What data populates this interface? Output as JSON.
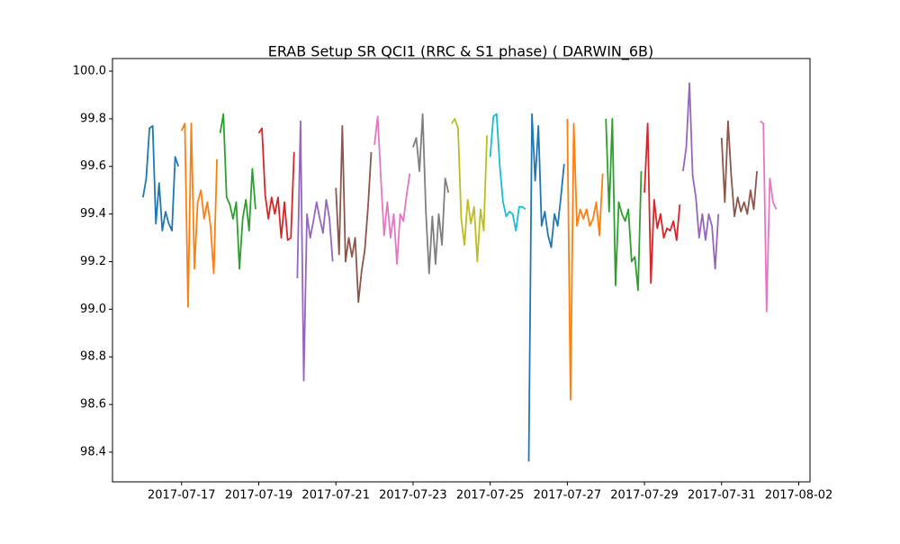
{
  "chart_data": {
    "type": "line",
    "title": "ERAB Setup SR QCI1 (RRC & S1 phase) ( DARWIN_6B)",
    "xlim": [
      "2017-07-15 05:00",
      "2017-08-02 07:00"
    ],
    "xticks": [
      "2017-07-17",
      "2017-07-19",
      "2017-07-21",
      "2017-07-23",
      "2017-07-25",
      "2017-07-27",
      "2017-07-29",
      "2017-07-31",
      "2017-08-02"
    ],
    "ylim": [
      98.275,
      100.053
    ],
    "yticks": [
      98.4,
      98.6,
      98.8,
      {
        "value": 99,
        "label": "99.0"
      },
      99.2,
      99.4,
      99.6,
      99.8,
      {
        "value": 100,
        "label": "100.0"
      }
    ],
    "series": [
      {
        "color": "#1f77b4",
        "x": [
          "2017-07-16 00:00",
          "2017-07-16 02:00",
          "2017-07-16 04:00",
          "2017-07-16 06:00",
          "2017-07-16 08:00",
          "2017-07-16 10:00",
          "2017-07-16 12:00",
          "2017-07-16 14:00",
          "2017-07-16 16:00",
          "2017-07-16 18:00",
          "2017-07-16 20:00",
          "2017-07-16 22:00"
        ],
        "values": [
          99.47,
          99.55,
          99.76,
          99.77,
          99.36,
          99.53,
          99.33,
          99.41,
          99.36,
          99.33,
          99.64,
          99.6
        ]
      },
      {
        "color": "#ff7f0e",
        "x": [
          "2017-07-17 00:00",
          "2017-07-17 02:00",
          "2017-07-17 04:00",
          "2017-07-17 06:00",
          "2017-07-17 08:00",
          "2017-07-17 10:00",
          "2017-07-17 12:00",
          "2017-07-17 14:00",
          "2017-07-17 16:00",
          "2017-07-17 18:00",
          "2017-07-17 20:00",
          "2017-07-17 22:00"
        ],
        "values": [
          99.75,
          99.78,
          99.01,
          99.78,
          99.17,
          99.45,
          99.5,
          99.38,
          99.45,
          99.35,
          99.15,
          99.63
        ]
      },
      {
        "color": "#2ca02c",
        "x": [
          "2017-07-18 00:00",
          "2017-07-18 02:00",
          "2017-07-18 04:00",
          "2017-07-18 06:00",
          "2017-07-18 08:00",
          "2017-07-18 10:00",
          "2017-07-18 12:00",
          "2017-07-18 14:00",
          "2017-07-18 16:00",
          "2017-07-18 18:00",
          "2017-07-18 20:00",
          "2017-07-18 22:00"
        ],
        "values": [
          99.74,
          99.82,
          99.47,
          99.44,
          99.38,
          99.45,
          99.17,
          99.38,
          99.46,
          99.33,
          99.59,
          99.42
        ]
      },
      {
        "color": "#d62728",
        "x": [
          "2017-07-19 00:00",
          "2017-07-19 02:00",
          "2017-07-19 04:00",
          "2017-07-19 06:00",
          "2017-07-19 08:00",
          "2017-07-19 10:00",
          "2017-07-19 12:00",
          "2017-07-19 14:00",
          "2017-07-19 16:00",
          "2017-07-19 18:00",
          "2017-07-19 20:00",
          "2017-07-19 22:00"
        ],
        "values": [
          99.74,
          99.76,
          99.48,
          99.38,
          99.47,
          99.4,
          99.47,
          99.3,
          99.45,
          99.29,
          99.3,
          99.66
        ]
      },
      {
        "color": "#9467bd",
        "x": [
          "2017-07-20 00:00",
          "2017-07-20 02:00",
          "2017-07-20 04:00",
          "2017-07-20 06:00",
          "2017-07-20 08:00",
          "2017-07-20 10:00",
          "2017-07-20 12:00",
          "2017-07-20 14:00",
          "2017-07-20 16:00",
          "2017-07-20 18:00",
          "2017-07-20 20:00",
          "2017-07-20 22:00"
        ],
        "values": [
          99.13,
          99.79,
          98.7,
          99.4,
          99.3,
          99.37,
          99.45,
          99.38,
          99.32,
          99.46,
          99.38,
          99.2
        ]
      },
      {
        "color": "#8c564b",
        "x": [
          "2017-07-21 00:00",
          "2017-07-21 02:00",
          "2017-07-21 04:00",
          "2017-07-21 06:00",
          "2017-07-21 08:00",
          "2017-07-21 10:00",
          "2017-07-21 12:00",
          "2017-07-21 14:00",
          "2017-07-21 16:00",
          "2017-07-21 18:00",
          "2017-07-21 20:00",
          "2017-07-21 22:00"
        ],
        "values": [
          99.51,
          99.23,
          99.77,
          99.2,
          99.3,
          99.22,
          99.3,
          99.03,
          99.16,
          99.25,
          99.43,
          99.66
        ]
      },
      {
        "color": "#e377c2",
        "x": [
          "2017-07-22 00:00",
          "2017-07-22 02:00",
          "2017-07-22 04:00",
          "2017-07-22 06:00",
          "2017-07-22 08:00",
          "2017-07-22 10:00",
          "2017-07-22 12:00",
          "2017-07-22 14:00",
          "2017-07-22 16:00",
          "2017-07-22 18:00",
          "2017-07-22 20:00",
          "2017-07-22 22:00"
        ],
        "values": [
          99.69,
          99.81,
          99.55,
          99.31,
          99.45,
          99.3,
          99.4,
          99.19,
          99.4,
          99.37,
          99.48,
          99.57
        ]
      },
      {
        "color": "#7f7f7f",
        "x": [
          "2017-07-23 00:00",
          "2017-07-23 02:00",
          "2017-07-23 04:00",
          "2017-07-23 06:00",
          "2017-07-23 08:00",
          "2017-07-23 10:00",
          "2017-07-23 12:00",
          "2017-07-23 14:00",
          "2017-07-23 16:00",
          "2017-07-23 18:00",
          "2017-07-23 20:00",
          "2017-07-23 22:00"
        ],
        "values": [
          99.68,
          99.72,
          99.58,
          99.82,
          99.41,
          99.15,
          99.39,
          99.19,
          99.4,
          99.27,
          99.55,
          99.49
        ]
      },
      {
        "color": "#bcbd22",
        "x": [
          "2017-07-24 00:00",
          "2017-07-24 02:00",
          "2017-07-24 04:00",
          "2017-07-24 06:00",
          "2017-07-24 08:00",
          "2017-07-24 10:00",
          "2017-07-24 12:00",
          "2017-07-24 14:00",
          "2017-07-24 16:00",
          "2017-07-24 18:00",
          "2017-07-24 20:00",
          "2017-07-24 22:00"
        ],
        "values": [
          99.78,
          99.8,
          99.76,
          99.38,
          99.27,
          99.46,
          99.36,
          99.43,
          99.2,
          99.42,
          99.33,
          99.73
        ]
      },
      {
        "color": "#17becf",
        "x": [
          "2017-07-25 00:00",
          "2017-07-25 02:00",
          "2017-07-25 04:00",
          "2017-07-25 06:00",
          "2017-07-25 08:00",
          "2017-07-25 10:00",
          "2017-07-25 12:00",
          "2017-07-25 14:00",
          "2017-07-25 16:00",
          "2017-07-25 18:00",
          "2017-07-25 20:00",
          "2017-07-25 22:00"
        ],
        "values": [
          99.64,
          99.81,
          99.82,
          99.6,
          99.45,
          99.39,
          99.41,
          99.4,
          99.33,
          99.43,
          99.43,
          99.42
        ]
      },
      {
        "color": "#1f77b4",
        "x": [
          "2017-07-26 00:00",
          "2017-07-26 02:00",
          "2017-07-26 04:00",
          "2017-07-26 06:00",
          "2017-07-26 08:00",
          "2017-07-26 10:00",
          "2017-07-26 12:00",
          "2017-07-26 14:00",
          "2017-07-26 16:00",
          "2017-07-26 18:00",
          "2017-07-26 20:00",
          "2017-07-26 22:00"
        ],
        "values": [
          98.36,
          99.82,
          99.54,
          99.77,
          99.35,
          99.41,
          99.31,
          99.26,
          99.4,
          99.35,
          99.47,
          99.61
        ]
      },
      {
        "color": "#ff7f0e",
        "x": [
          "2017-07-27 00:00",
          "2017-07-27 02:00",
          "2017-07-27 04:00",
          "2017-07-27 06:00",
          "2017-07-27 08:00",
          "2017-07-27 10:00",
          "2017-07-27 12:00",
          "2017-07-27 14:00",
          "2017-07-27 16:00",
          "2017-07-27 18:00",
          "2017-07-27 20:00",
          "2017-07-27 22:00"
        ],
        "values": [
          99.8,
          98.62,
          99.78,
          99.35,
          99.42,
          99.38,
          99.42,
          99.35,
          99.38,
          99.45,
          99.31,
          99.57
        ]
      },
      {
        "color": "#2ca02c",
        "x": [
          "2017-07-28 00:00",
          "2017-07-28 02:00",
          "2017-07-28 04:00",
          "2017-07-28 06:00",
          "2017-07-28 08:00",
          "2017-07-28 10:00",
          "2017-07-28 12:00",
          "2017-07-28 14:00",
          "2017-07-28 16:00",
          "2017-07-28 18:00",
          "2017-07-28 20:00",
          "2017-07-28 22:00"
        ],
        "values": [
          99.8,
          99.41,
          99.8,
          99.1,
          99.45,
          99.4,
          99.37,
          99.42,
          99.2,
          99.22,
          99.08,
          99.58
        ]
      },
      {
        "color": "#d62728",
        "x": [
          "2017-07-29 00:00",
          "2017-07-29 02:00",
          "2017-07-29 04:00",
          "2017-07-29 06:00",
          "2017-07-29 08:00",
          "2017-07-29 10:00",
          "2017-07-29 12:00",
          "2017-07-29 14:00",
          "2017-07-29 16:00",
          "2017-07-29 18:00",
          "2017-07-29 20:00",
          "2017-07-29 22:00"
        ],
        "values": [
          99.49,
          99.78,
          99.11,
          99.46,
          99.34,
          99.4,
          99.3,
          99.34,
          99.33,
          99.37,
          99.29,
          99.44
        ]
      },
      {
        "color": "#9467bd",
        "x": [
          "2017-07-30 00:00",
          "2017-07-30 02:00",
          "2017-07-30 04:00",
          "2017-07-30 06:00",
          "2017-07-30 08:00",
          "2017-07-30 10:00",
          "2017-07-30 12:00",
          "2017-07-30 14:00",
          "2017-07-30 16:00",
          "2017-07-30 18:00",
          "2017-07-30 20:00",
          "2017-07-30 22:00"
        ],
        "values": [
          99.58,
          99.68,
          99.95,
          99.56,
          99.47,
          99.3,
          99.4,
          99.29,
          99.4,
          99.35,
          99.17,
          99.4
        ]
      },
      {
        "color": "#8c564b",
        "x": [
          "2017-07-31 00:00",
          "2017-07-31 02:00",
          "2017-07-31 04:00",
          "2017-07-31 06:00",
          "2017-07-31 08:00",
          "2017-07-31 10:00",
          "2017-07-31 12:00",
          "2017-07-31 14:00",
          "2017-07-31 16:00",
          "2017-07-31 18:00",
          "2017-07-31 20:00",
          "2017-07-31 22:00"
        ],
        "values": [
          99.72,
          99.45,
          99.79,
          99.56,
          99.39,
          99.47,
          99.41,
          99.45,
          99.4,
          99.5,
          99.42,
          99.58
        ]
      },
      {
        "color": "#e377c2",
        "x": [
          "2017-08-01 00:00",
          "2017-08-01 02:00",
          "2017-08-01 04:00",
          "2017-08-01 06:00",
          "2017-08-01 08:00",
          "2017-08-01 10:00"
        ],
        "values": [
          99.79,
          99.78,
          98.99,
          99.55,
          99.45,
          99.42
        ]
      }
    ]
  }
}
